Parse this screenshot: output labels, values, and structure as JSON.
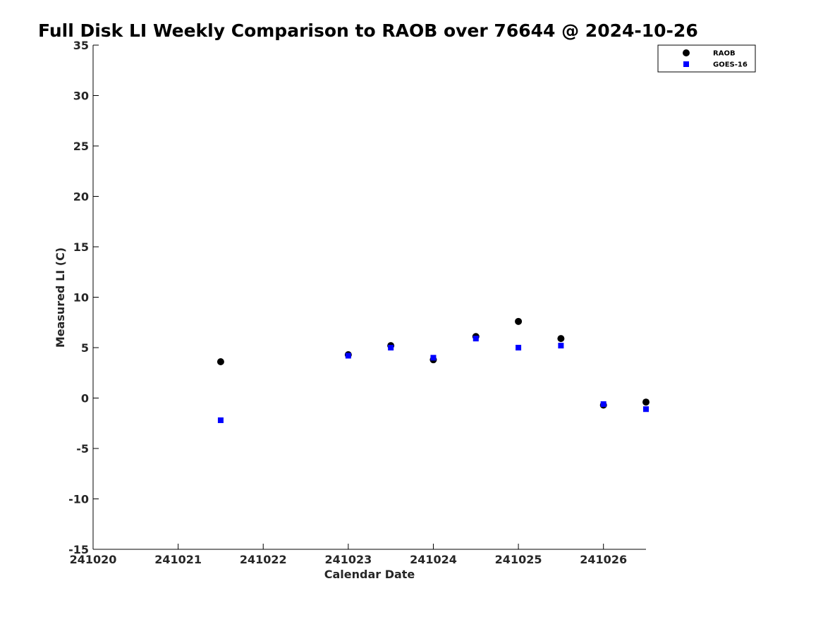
{
  "chart_data": {
    "type": "scatter",
    "title": "Full Disk LI Weekly Comparison to RAOB over 76644 @ 2024-10-26",
    "xlabel": "Calendar Date",
    "ylabel": "Measured LI (C)",
    "xlim": [
      241020,
      241026.5
    ],
    "ylim": [
      -15,
      35
    ],
    "x_ticks": [
      "241020",
      "241021",
      "241022",
      "241023",
      "241024",
      "241025",
      "241026"
    ],
    "y_ticks": [
      "35",
      "30",
      "25",
      "20",
      "15",
      "10",
      "5",
      "0",
      "-5",
      "-10",
      "-15"
    ],
    "legend_position": "top-right",
    "grid": false,
    "series": [
      {
        "name": "RAOB",
        "color": "#000000",
        "marker": "circle",
        "x": [
          241021.5,
          241023,
          241023.5,
          241024,
          241024.5,
          241025,
          241025.5,
          241026,
          241026.5
        ],
        "y": [
          3.6,
          4.3,
          5.2,
          3.8,
          6.1,
          7.6,
          5.9,
          -0.7,
          -0.4
        ]
      },
      {
        "name": "GOES-16",
        "color": "#0000ff",
        "marker": "square",
        "x": [
          241021.5,
          241023,
          241023.5,
          241024,
          241024.5,
          241025,
          241025.5,
          241026,
          241026.5
        ],
        "y": [
          -2.2,
          4.2,
          5.0,
          4.0,
          5.9,
          5.0,
          5.2,
          -0.6,
          -1.1
        ]
      }
    ]
  }
}
